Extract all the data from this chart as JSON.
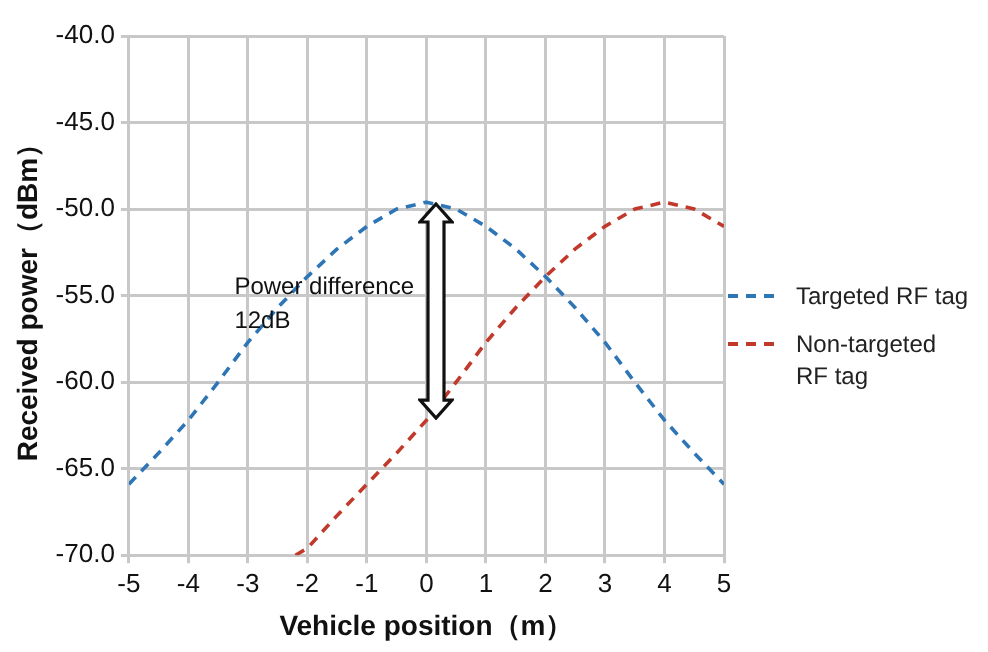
{
  "chart_data": {
    "type": "line",
    "xlabel": "Vehicle position（m）",
    "ylabel": "Received power（dBm）",
    "xlim": [
      -5,
      5
    ],
    "xticks": [
      -5,
      -4,
      -3,
      -2,
      -1,
      0,
      1,
      2,
      3,
      4,
      5
    ],
    "ylim": [
      -70,
      -40
    ],
    "yticks": [
      {
        "value": -70,
        "label": "-70.0"
      },
      {
        "value": -65,
        "label": "-65.0"
      },
      {
        "value": -60,
        "label": "-60.0"
      },
      {
        "value": -55,
        "label": "-55.0"
      },
      {
        "value": -50,
        "label": "-50.0"
      },
      {
        "value": -45,
        "label": "-45.0"
      },
      {
        "value": -40,
        "label": "-40.0"
      }
    ],
    "grid": true,
    "legend": "right",
    "marker": "none",
    "line_style": "dashed",
    "series": [
      {
        "name": "Targeted RF tag",
        "color": "#2e75b6",
        "x": [
          -5,
          -4.5,
          -4,
          -3.5,
          -3,
          -2.5,
          -2,
          -1.5,
          -1,
          -0.5,
          0,
          0.5,
          1,
          1.5,
          2,
          2.5,
          3,
          3.5,
          4,
          4.5,
          5
        ],
        "values": [
          -65.9,
          -64.1,
          -62.2,
          -60.0,
          -57.7,
          -55.7,
          -53.9,
          -52.3,
          -51.0,
          -50.0,
          -49.6,
          -50.0,
          -51.0,
          -52.3,
          -53.9,
          -55.7,
          -57.7,
          -60.0,
          -62.2,
          -64.1,
          -65.9
        ]
      },
      {
        "name": "Non-targeted RF tag",
        "color": "#c0392b",
        "x": [
          -2.2,
          -2,
          -1.5,
          -1,
          -0.5,
          0,
          0.5,
          1,
          1.5,
          2,
          2.5,
          3,
          3.5,
          4,
          4.5,
          5
        ],
        "values": [
          -70,
          -69.6,
          -67.7,
          -65.9,
          -64.1,
          -62.2,
          -60.0,
          -57.7,
          -55.7,
          -53.9,
          -52.3,
          -51.0,
          -50.0,
          -49.6,
          -50.0,
          -51.0
        ]
      }
    ],
    "annotations": [
      "Power difference\n12dB"
    ]
  }
}
